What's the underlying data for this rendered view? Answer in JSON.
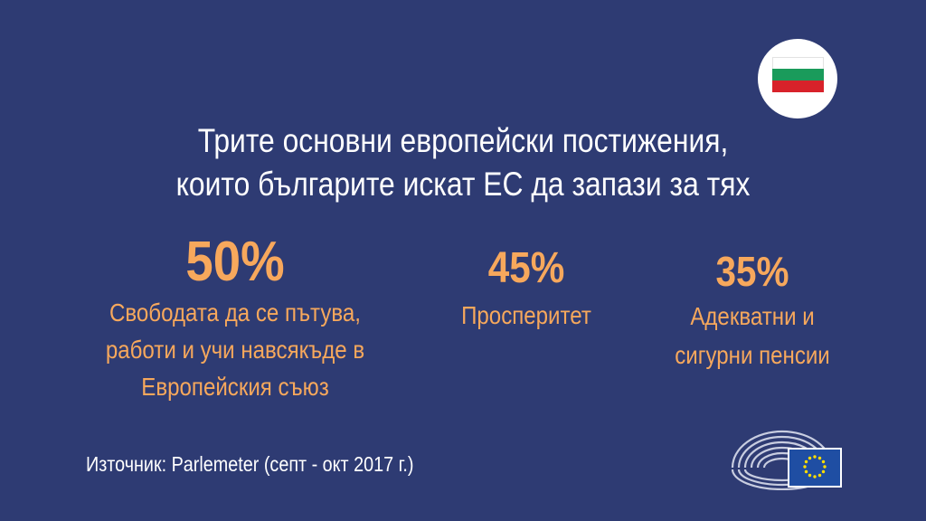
{
  "title": {
    "line1": "Трите основни европейски постижения,",
    "line2": "които българите искат ЕС да запази за тях"
  },
  "stats": [
    {
      "value": "50%",
      "lines": [
        "Свободата да се пътува,",
        "работи и учи навсякъде в",
        "Европейския съюз"
      ]
    },
    {
      "value": "45%",
      "lines": [
        "Просперитет"
      ]
    },
    {
      "value": "35%",
      "lines": [
        "Адекватни и",
        "сигурни пенсии"
      ]
    }
  ],
  "source": "Източник: Parlemeter (септ - окт 2017 г.)",
  "colors": {
    "background": "#2e3b73",
    "accent": "#f7a85c",
    "text": "#ffffff",
    "eu_blue": "#1f4ea3",
    "eu_star": "#ffdd00"
  },
  "icons": {
    "flag": "bulgaria-flag-icon",
    "logo": "european-parliament-hemicycle-icon",
    "eu_flag": "eu-flag-icon"
  }
}
